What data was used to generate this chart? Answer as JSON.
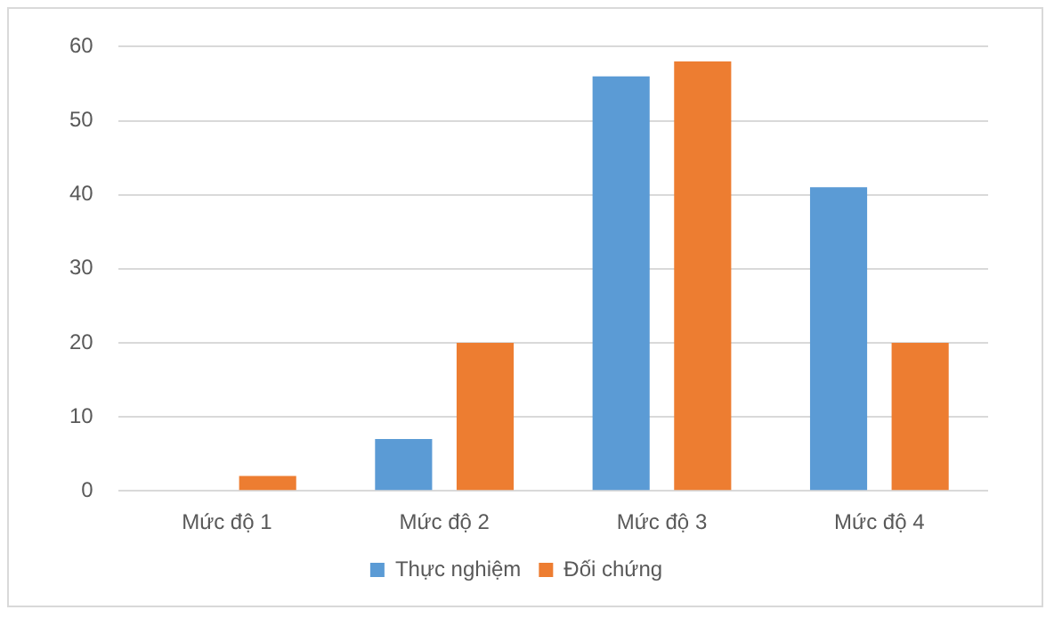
{
  "chart_data": {
    "type": "bar",
    "categories": [
      "Mức độ 1",
      "Mức độ 2",
      "Mức độ 3",
      "Mức độ 4"
    ],
    "series": [
      {
        "name": "Thực nghiệm",
        "color": "#5b9bd5",
        "values": [
          0,
          7,
          56,
          41
        ]
      },
      {
        "name": "Đối chứng",
        "color": "#ed7d31",
        "values": [
          2,
          20,
          58,
          20
        ]
      }
    ],
    "ylim": [
      0,
      60
    ],
    "yticks": [
      0,
      10,
      20,
      30,
      40,
      50,
      60
    ],
    "grid": "y",
    "legend": "bottom"
  }
}
